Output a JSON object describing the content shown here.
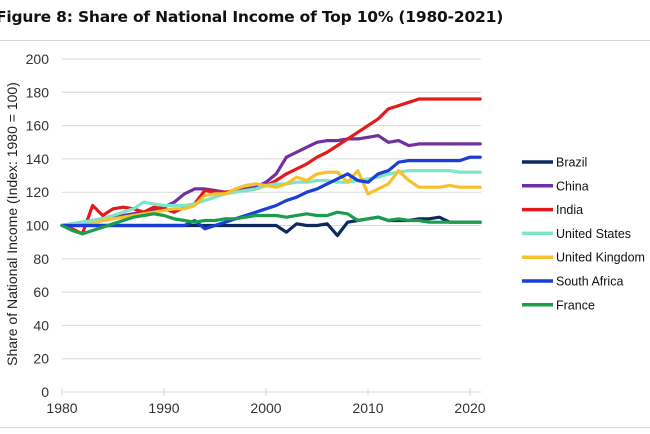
{
  "chart_data": {
    "type": "line",
    "title": "Figure 8: Share of National Income of Top 10% (1980-2021)",
    "xlabel": "",
    "ylabel": "Share of National Income (Index: 1980 = 100)",
    "xlim": [
      1980,
      2021
    ],
    "ylim": [
      0,
      200
    ],
    "xticks": [
      1980,
      1990,
      2000,
      2010,
      2020
    ],
    "yticks": [
      0,
      20,
      40,
      60,
      80,
      100,
      120,
      140,
      160,
      180,
      200
    ],
    "grid": true,
    "legend_position": "right",
    "x": [
      1980,
      1981,
      1982,
      1983,
      1984,
      1985,
      1986,
      1987,
      1988,
      1989,
      1990,
      1991,
      1992,
      1993,
      1994,
      1995,
      1996,
      1997,
      1998,
      1999,
      2000,
      2001,
      2002,
      2003,
      2004,
      2005,
      2006,
      2007,
      2008,
      2009,
      2010,
      2011,
      2012,
      2013,
      2014,
      2015,
      2016,
      2017,
      2018,
      2019,
      2020,
      2021
    ],
    "series": [
      {
        "name": "Brazil",
        "color": "#0d2a5c",
        "values": [
          100,
          100,
          100,
          100,
          100,
          100,
          100,
          100,
          100,
          100,
          100,
          100,
          100,
          100,
          100,
          100,
          100,
          100,
          100,
          100,
          100,
          100,
          96,
          101,
          100,
          100,
          101,
          94,
          102,
          103,
          104,
          105,
          103,
          103,
          103,
          104,
          104,
          105,
          102,
          102,
          102,
          102
        ]
      },
      {
        "name": "China",
        "color": "#7030a0",
        "values": [
          100,
          101,
          102,
          103,
          104,
          105,
          106,
          107,
          108,
          109,
          111,
          114,
          119,
          122,
          122,
          121,
          120,
          121,
          122,
          123,
          126,
          131,
          141,
          144,
          147,
          150,
          151,
          151,
          152,
          152,
          153,
          154,
          150,
          151,
          148,
          149,
          149,
          149,
          149,
          149,
          149,
          149
        ]
      },
      {
        "name": "India",
        "color": "#e31a1c",
        "values": [
          100,
          98,
          95,
          112,
          106,
          110,
          111,
          110,
          108,
          111,
          110,
          108,
          111,
          113,
          121,
          120,
          120,
          121,
          121,
          122,
          124,
          127,
          131,
          134,
          137,
          141,
          144,
          148,
          152,
          156,
          160,
          164,
          170,
          172,
          174,
          176,
          176,
          176,
          176,
          176,
          176,
          176
        ]
      },
      {
        "name": "United States",
        "color": "#7fe5c8",
        "values": [
          100,
          101,
          102,
          103,
          104,
          106,
          108,
          110,
          114,
          113,
          112,
          112,
          112,
          113,
          115,
          117,
          119,
          120,
          121,
          122,
          124,
          125,
          125,
          126,
          126,
          127,
          127,
          126,
          126,
          127,
          128,
          129,
          131,
          132,
          133,
          133,
          133,
          133,
          133,
          132,
          132,
          132
        ]
      },
      {
        "name": "United Kingdom",
        "color": "#f5c12e",
        "values": [
          100,
          100,
          100,
          101,
          103,
          104,
          105,
          106,
          107,
          108,
          109,
          110,
          110,
          112,
          118,
          119,
          119,
          122,
          124,
          125,
          124,
          123,
          125,
          129,
          127,
          131,
          132,
          132,
          126,
          133,
          119,
          122,
          125,
          133,
          127,
          123,
          123,
          123,
          124,
          123,
          123,
          123
        ]
      },
      {
        "name": "South Africa",
        "color": "#1a3fd6",
        "values": [
          100,
          100,
          100,
          100,
          100,
          100,
          100,
          100,
          100,
          100,
          100,
          100,
          100,
          103,
          98,
          100,
          102,
          104,
          106,
          108,
          110,
          112,
          115,
          117,
          120,
          122,
          125,
          128,
          131,
          127,
          126,
          131,
          133,
          138,
          139,
          139,
          139,
          139,
          139,
          139,
          141,
          141
        ]
      },
      {
        "name": "France",
        "color": "#1a9e4b",
        "values": [
          100,
          97,
          95,
          97,
          99,
          101,
          103,
          105,
          106,
          107,
          106,
          104,
          103,
          102,
          103,
          103,
          104,
          104,
          105,
          106,
          106,
          106,
          105,
          106,
          107,
          106,
          106,
          108,
          107,
          103,
          104,
          105,
          103,
          104,
          103,
          103,
          102,
          102,
          102,
          102,
          102,
          102
        ]
      }
    ]
  }
}
